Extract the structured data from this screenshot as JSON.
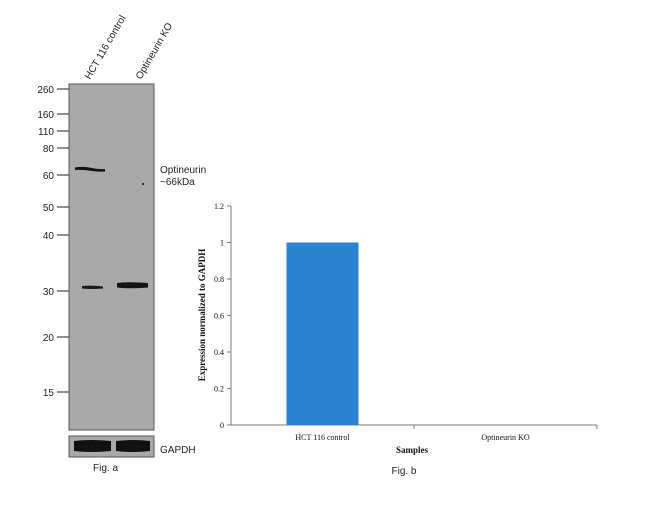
{
  "western_blot": {
    "lanes": [
      "HCT 116 control",
      "Optineurin KO"
    ],
    "mw_markers": [
      "260",
      "160",
      "110",
      "80",
      "60",
      "50",
      "40",
      "30",
      "20",
      "15"
    ],
    "target_label_line1": "Optineurin",
    "target_label_line2": "~66kDa",
    "loading_control_label": "GAPDH",
    "caption": "Fig. a"
  },
  "chart_data": {
    "type": "bar",
    "categories": [
      "HCT 116 control",
      "Optineurin KO"
    ],
    "values": [
      1.0,
      0.0
    ],
    "xlabel": "Samples",
    "ylabel": "Expression normalized to GAPDH",
    "ylim": [
      0,
      1.2
    ],
    "yticks": [
      "0",
      "0.2",
      "0.4",
      "0.6",
      "0.8",
      "1",
      "1.2"
    ],
    "bar_color": "#2a82d0",
    "grid": false,
    "caption": "Fig. b"
  }
}
